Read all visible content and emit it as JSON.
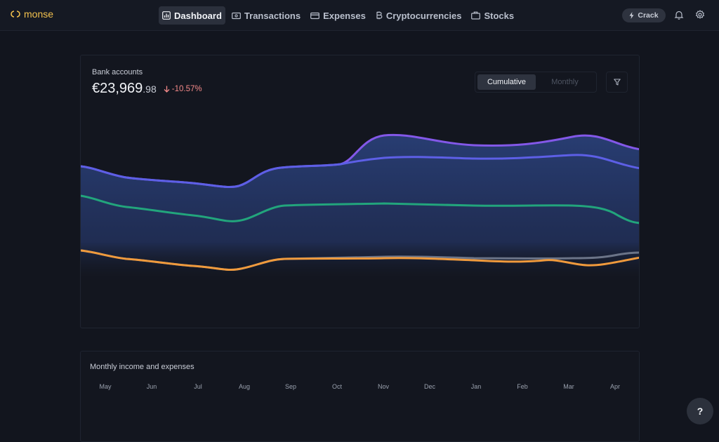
{
  "brand": {
    "name": "monse",
    "color": "#f2c14e"
  },
  "nav": {
    "items": [
      {
        "label": "Dashboard",
        "icon": "chart-icon",
        "active": true
      },
      {
        "label": "Transactions",
        "icon": "banknote-icon"
      },
      {
        "label": "Expenses",
        "icon": "card-icon"
      },
      {
        "label": "Cryptocurrencies",
        "icon": "bitcoin-icon"
      },
      {
        "label": "Stocks",
        "icon": "briefcase-icon"
      }
    ]
  },
  "header": {
    "crack_label": "Crack"
  },
  "bank": {
    "title": "Bank accounts",
    "amount_main": "€23,969",
    "amount_decimal": ".98",
    "change": "-10.57%",
    "toggle": {
      "cumulative": "Cumulative",
      "monthly": "Monthly"
    }
  },
  "chart_data": {
    "type": "area",
    "series_colors": [
      "#8358e8",
      "#5d5fe6",
      "#22a57c",
      "#f09a3c",
      "#6b7488"
    ]
  },
  "monthly": {
    "title": "Monthly income and expenses",
    "months": [
      "May",
      "Jun",
      "Jul",
      "Aug",
      "Sep",
      "Oct",
      "Nov",
      "Dec",
      "Jan",
      "Feb",
      "Mar",
      "Apr"
    ]
  },
  "help": {
    "label": "?"
  }
}
